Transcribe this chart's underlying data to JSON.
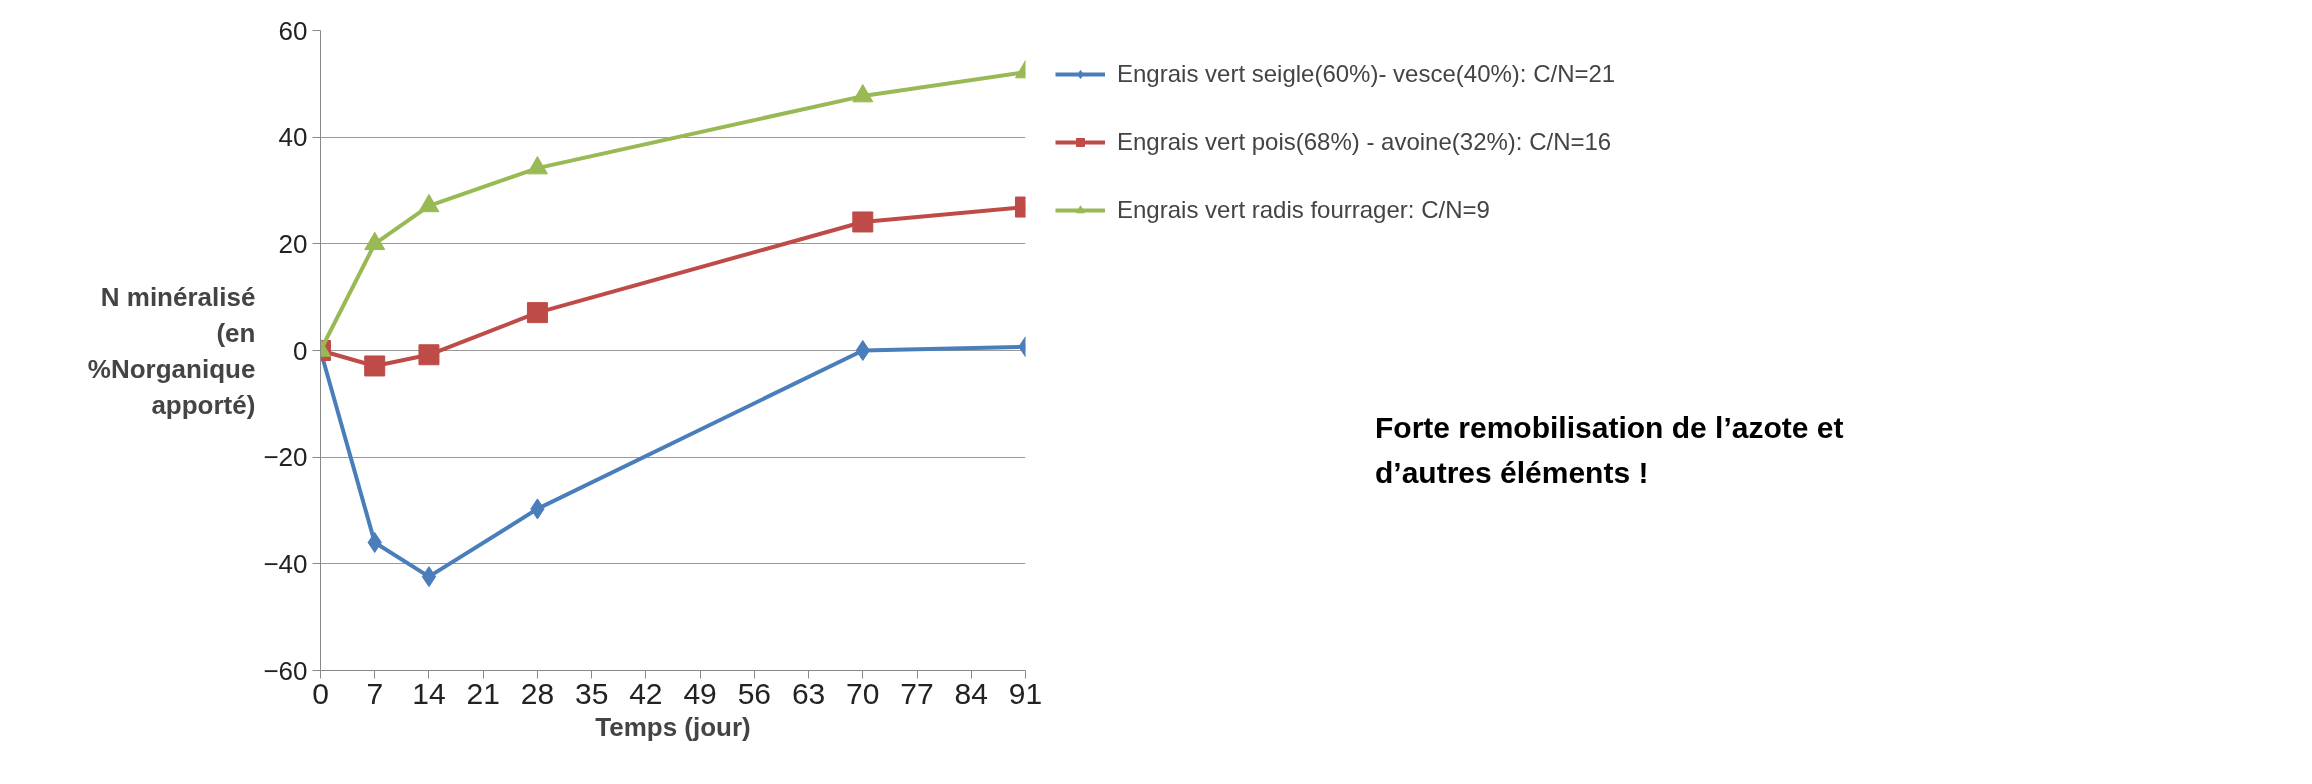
{
  "chart_data": {
    "type": "line",
    "xlabel": "Temps (jour)",
    "ylabel": "N minéralisé (en %Norganique apporté)",
    "x": [
      0,
      7,
      14,
      28,
      70,
      91
    ],
    "series": [
      {
        "name": "Engrais vert seigle(60%)- vesce(40%): C/N=21",
        "color": "#4a7ebb",
        "marker": "diamond",
        "values": [
          0,
          -36,
          -42.4,
          -29.7,
          0,
          0.7
        ]
      },
      {
        "name": "Engrais vert pois(68%) - avoine(32%): C/N=16",
        "color": "#be4b48",
        "marker": "square",
        "values": [
          0,
          -2.9,
          -0.8,
          7.1,
          24.1,
          26.9
        ]
      },
      {
        "name": "Engrais vert radis fourrager: C/N=9",
        "color": "#98b954",
        "marker": "triangle",
        "values": [
          0,
          20,
          27.1,
          34.2,
          47.7,
          52.2
        ]
      }
    ],
    "xlim": [
      0,
      91
    ],
    "xticks": [
      0,
      7,
      14,
      21,
      28,
      35,
      42,
      49,
      56,
      63,
      70,
      77,
      84,
      91
    ],
    "ylim": [
      -60,
      60
    ],
    "yticks": [
      -60,
      -40,
      -20,
      0,
      20,
      40,
      60
    ],
    "grid": "y",
    "legend": "right",
    "line_style": "solid",
    "annotations": [
      "Forte remobilisation de l’azote et d’autres éléments !"
    ]
  }
}
